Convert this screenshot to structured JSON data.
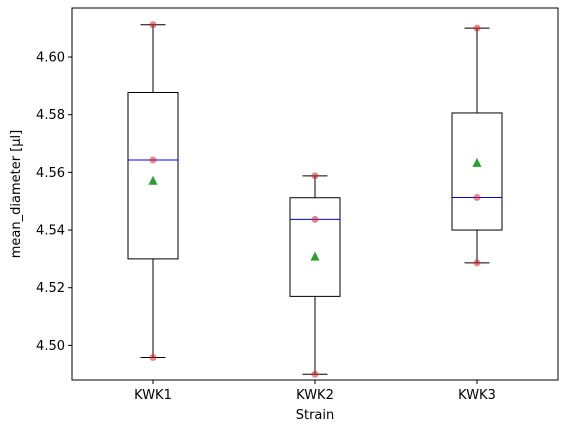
{
  "chart_data": {
    "type": "box",
    "xlabel": "Strain",
    "ylabel": "mean_diameter [µl]",
    "ylim": [
      4.488,
      4.617
    ],
    "yticks": [
      4.5,
      4.52,
      4.54,
      4.56,
      4.58,
      4.6
    ],
    "ytick_labels": [
      "4.50",
      "4.52",
      "4.54",
      "4.56",
      "4.58",
      "4.60"
    ],
    "grid": false,
    "categories": [
      "KWK1",
      "KWK2",
      "KWK3"
    ],
    "boxes": [
      {
        "name": "KWK1",
        "whisker_low": 4.4958,
        "q1": 4.53,
        "median": 4.5643,
        "q3": 4.5877,
        "whisker_high": 4.6112,
        "mean": 4.5571,
        "points": [
          4.4958,
          4.5643,
          4.6112
        ]
      },
      {
        "name": "KWK2",
        "whisker_low": 4.49,
        "q1": 4.517,
        "median": 4.5437,
        "q3": 4.5512,
        "whisker_high": 4.5588,
        "mean": 4.5308,
        "points": [
          4.49,
          4.5437,
          4.5588
        ]
      },
      {
        "name": "KWK3",
        "whisker_low": 4.5286,
        "q1": 4.54,
        "median": 4.5513,
        "q3": 4.5806,
        "whisker_high": 4.61,
        "mean": 4.5633,
        "points": [
          4.5286,
          4.5513,
          4.61
        ]
      }
    ],
    "colors": {
      "box": "#000000",
      "median": "#0000ff",
      "mean": "#2ca02c",
      "points": "#d62728"
    }
  }
}
